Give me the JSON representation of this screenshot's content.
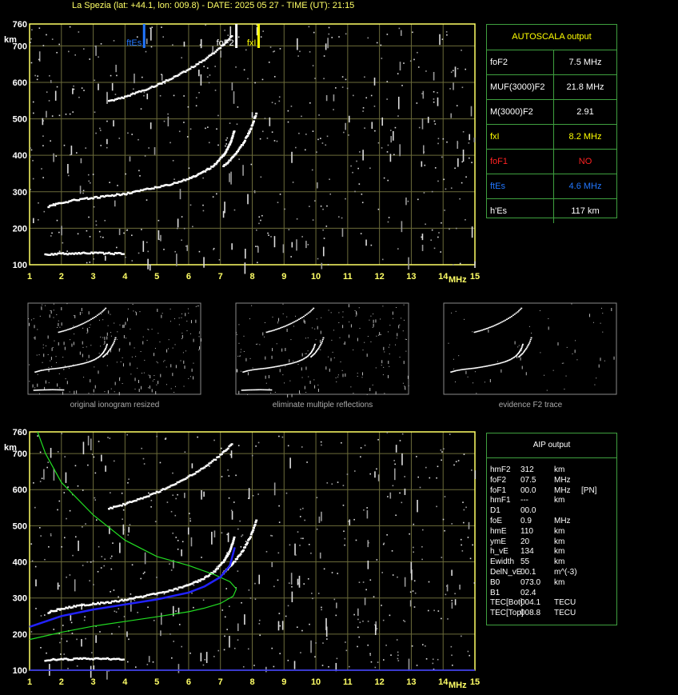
{
  "header": "La Spezia (lat: +44.1, lon: 009.8) - DATE: 2025 05 27 - TIME (UT): 21:15",
  "colors": {
    "grid": "#6b6b3a",
    "axis": "#ffff66",
    "box_border": "#3fa03f",
    "fxI": "#ffff00",
    "ftEs": "#2277ff",
    "foF1": "#ff2222",
    "profile": "#22dd22",
    "trace_fit": "#2222ff"
  },
  "chart_data": [
    {
      "type": "scatter",
      "xlim": [
        1,
        15
      ],
      "ylim": [
        100,
        760
      ],
      "xticks": [
        "1",
        "2",
        "3",
        "4",
        "5",
        "6",
        "7",
        "8",
        "9",
        "10",
        "11",
        "12",
        "13",
        "14",
        "15"
      ],
      "yticks": [
        "100",
        "200",
        "300",
        "400",
        "500",
        "600",
        "700",
        "760"
      ],
      "xunit": "MHz",
      "yunit": "km",
      "markers": [
        {
          "label": "ftEs",
          "x": 4.6
        },
        {
          "label": "foF2",
          "x": 7.5
        },
        {
          "label": "fxI",
          "x": 8.2
        }
      ],
      "traces": [
        {
          "x": [
            1.6,
            2,
            2.5,
            3,
            3.5,
            4,
            4.5,
            5,
            5.5,
            6,
            6.4,
            6.8,
            7.1,
            7.3,
            7.45
          ],
          "y": [
            260,
            270,
            278,
            283,
            288,
            295,
            303,
            312,
            322,
            335,
            350,
            372,
            400,
            430,
            470
          ]
        },
        {
          "x": [
            1.5,
            2,
            2.5,
            3,
            3.5,
            4
          ],
          "y": [
            128,
            130,
            131,
            132,
            131,
            130
          ]
        },
        {
          "x": [
            3.5,
            4,
            4.5,
            5,
            5.5,
            6,
            6.5,
            7,
            7.4
          ],
          "y": [
            548,
            560,
            575,
            592,
            612,
            635,
            662,
            695,
            730
          ]
        },
        {
          "x": [
            7.1,
            7.4,
            7.7,
            7.95,
            8.15
          ],
          "y": [
            370,
            395,
            430,
            470,
            520
          ]
        }
      ]
    },
    {
      "type": "line",
      "xlim": [
        1,
        15
      ],
      "ylim": [
        100,
        760
      ],
      "xticks": [
        "1",
        "2",
        "3",
        "4",
        "5",
        "6",
        "7",
        "8",
        "9",
        "10",
        "11",
        "12",
        "13",
        "14",
        "15"
      ],
      "yticks": [
        "100",
        "200",
        "300",
        "400",
        "500",
        "600",
        "700",
        "760"
      ],
      "xunit": "MHz",
      "yunit": "km",
      "profile": {
        "x": [
          1.0,
          1.5,
          2,
          3,
          4,
          5,
          6,
          6.5,
          7,
          7.4,
          7.5,
          7.3,
          6.8,
          6,
          5,
          4,
          3,
          2,
          1.5,
          1.25
        ],
        "y": [
          185,
          195,
          205,
          222,
          235,
          248,
          262,
          272,
          285,
          305,
          325,
          345,
          365,
          390,
          415,
          460,
          530,
          620,
          700,
          760
        ]
      },
      "fit_trace": {
        "x": [
          1.0,
          2,
          3,
          4,
          5,
          6,
          6.5,
          7,
          7.3,
          7.45
        ],
        "y": [
          220,
          250,
          268,
          282,
          296,
          315,
          332,
          358,
          390,
          440
        ]
      },
      "traces": [
        {
          "x": [
            1.6,
            2,
            2.5,
            3,
            3.5,
            4,
            4.5,
            5,
            5.5,
            6,
            6.4,
            6.8,
            7.1,
            7.3,
            7.45
          ],
          "y": [
            260,
            270,
            278,
            283,
            288,
            295,
            303,
            312,
            322,
            335,
            350,
            372,
            400,
            430,
            470
          ]
        },
        {
          "x": [
            1.5,
            2,
            2.5,
            3,
            3.5,
            4
          ],
          "y": [
            128,
            130,
            131,
            132,
            131,
            130
          ]
        },
        {
          "x": [
            3.5,
            4,
            4.5,
            5,
            5.5,
            6,
            6.5,
            7,
            7.4
          ],
          "y": [
            548,
            560,
            575,
            592,
            612,
            635,
            662,
            695,
            730
          ]
        },
        {
          "x": [
            7.1,
            7.4,
            7.7,
            7.95,
            8.15
          ],
          "y": [
            370,
            395,
            430,
            470,
            520
          ]
        }
      ]
    }
  ],
  "autoscala": {
    "title": "AUTOSCALA output",
    "rows": [
      {
        "label": "foF2",
        "value": "7.5 MHz",
        "color": "#ffffff"
      },
      {
        "label": "MUF(3000)F2",
        "value": "21.8 MHz",
        "color": "#ffffff"
      },
      {
        "label": "M(3000)F2",
        "value": "2.91",
        "color": "#ffffff"
      },
      {
        "label": "fxI",
        "value": "8.2 MHz",
        "color": "#ffff00"
      },
      {
        "label": "foF1",
        "value": "NO",
        "color": "#ff2222"
      },
      {
        "label": "ftEs",
        "value": "4.6 MHz",
        "color": "#2277ff"
      },
      {
        "label": "h'Es",
        "value": "117     km",
        "color": "#ffffff"
      }
    ]
  },
  "thumbnails": [
    {
      "caption": "original ionogram resized"
    },
    {
      "caption": "eliminate multiple reflections"
    },
    {
      "caption": "evidence F2 trace"
    }
  ],
  "aip": {
    "title": "AIP output",
    "rows": [
      [
        "hmF2",
        "312",
        "km",
        ""
      ],
      [
        "foF2",
        "07.5",
        "MHz",
        ""
      ],
      [
        "foF1",
        "00.0",
        "MHz",
        "[PN]"
      ],
      [
        "hmF1",
        "---",
        "km",
        ""
      ],
      [
        "D1",
        "00.0",
        "",
        ""
      ],
      [
        "foE",
        "0.9",
        "MHz",
        ""
      ],
      [
        "hmE",
        "110",
        "km",
        ""
      ],
      [
        "ymE",
        "20",
        "km",
        ""
      ],
      [
        "h_vE",
        "134",
        "km",
        ""
      ],
      [
        "Ewidth",
        "55",
        "km",
        ""
      ],
      [
        "DelN_vE",
        "00.1",
        "m^(-3)",
        ""
      ],
      [
        "B0",
        "073.0",
        "km",
        ""
      ],
      [
        "B1",
        "02.4",
        "",
        ""
      ],
      [
        "TEC[Bot]",
        "004.1",
        "TECU",
        ""
      ],
      [
        "TEC[Top]",
        "008.8",
        "TECU",
        ""
      ]
    ]
  }
}
